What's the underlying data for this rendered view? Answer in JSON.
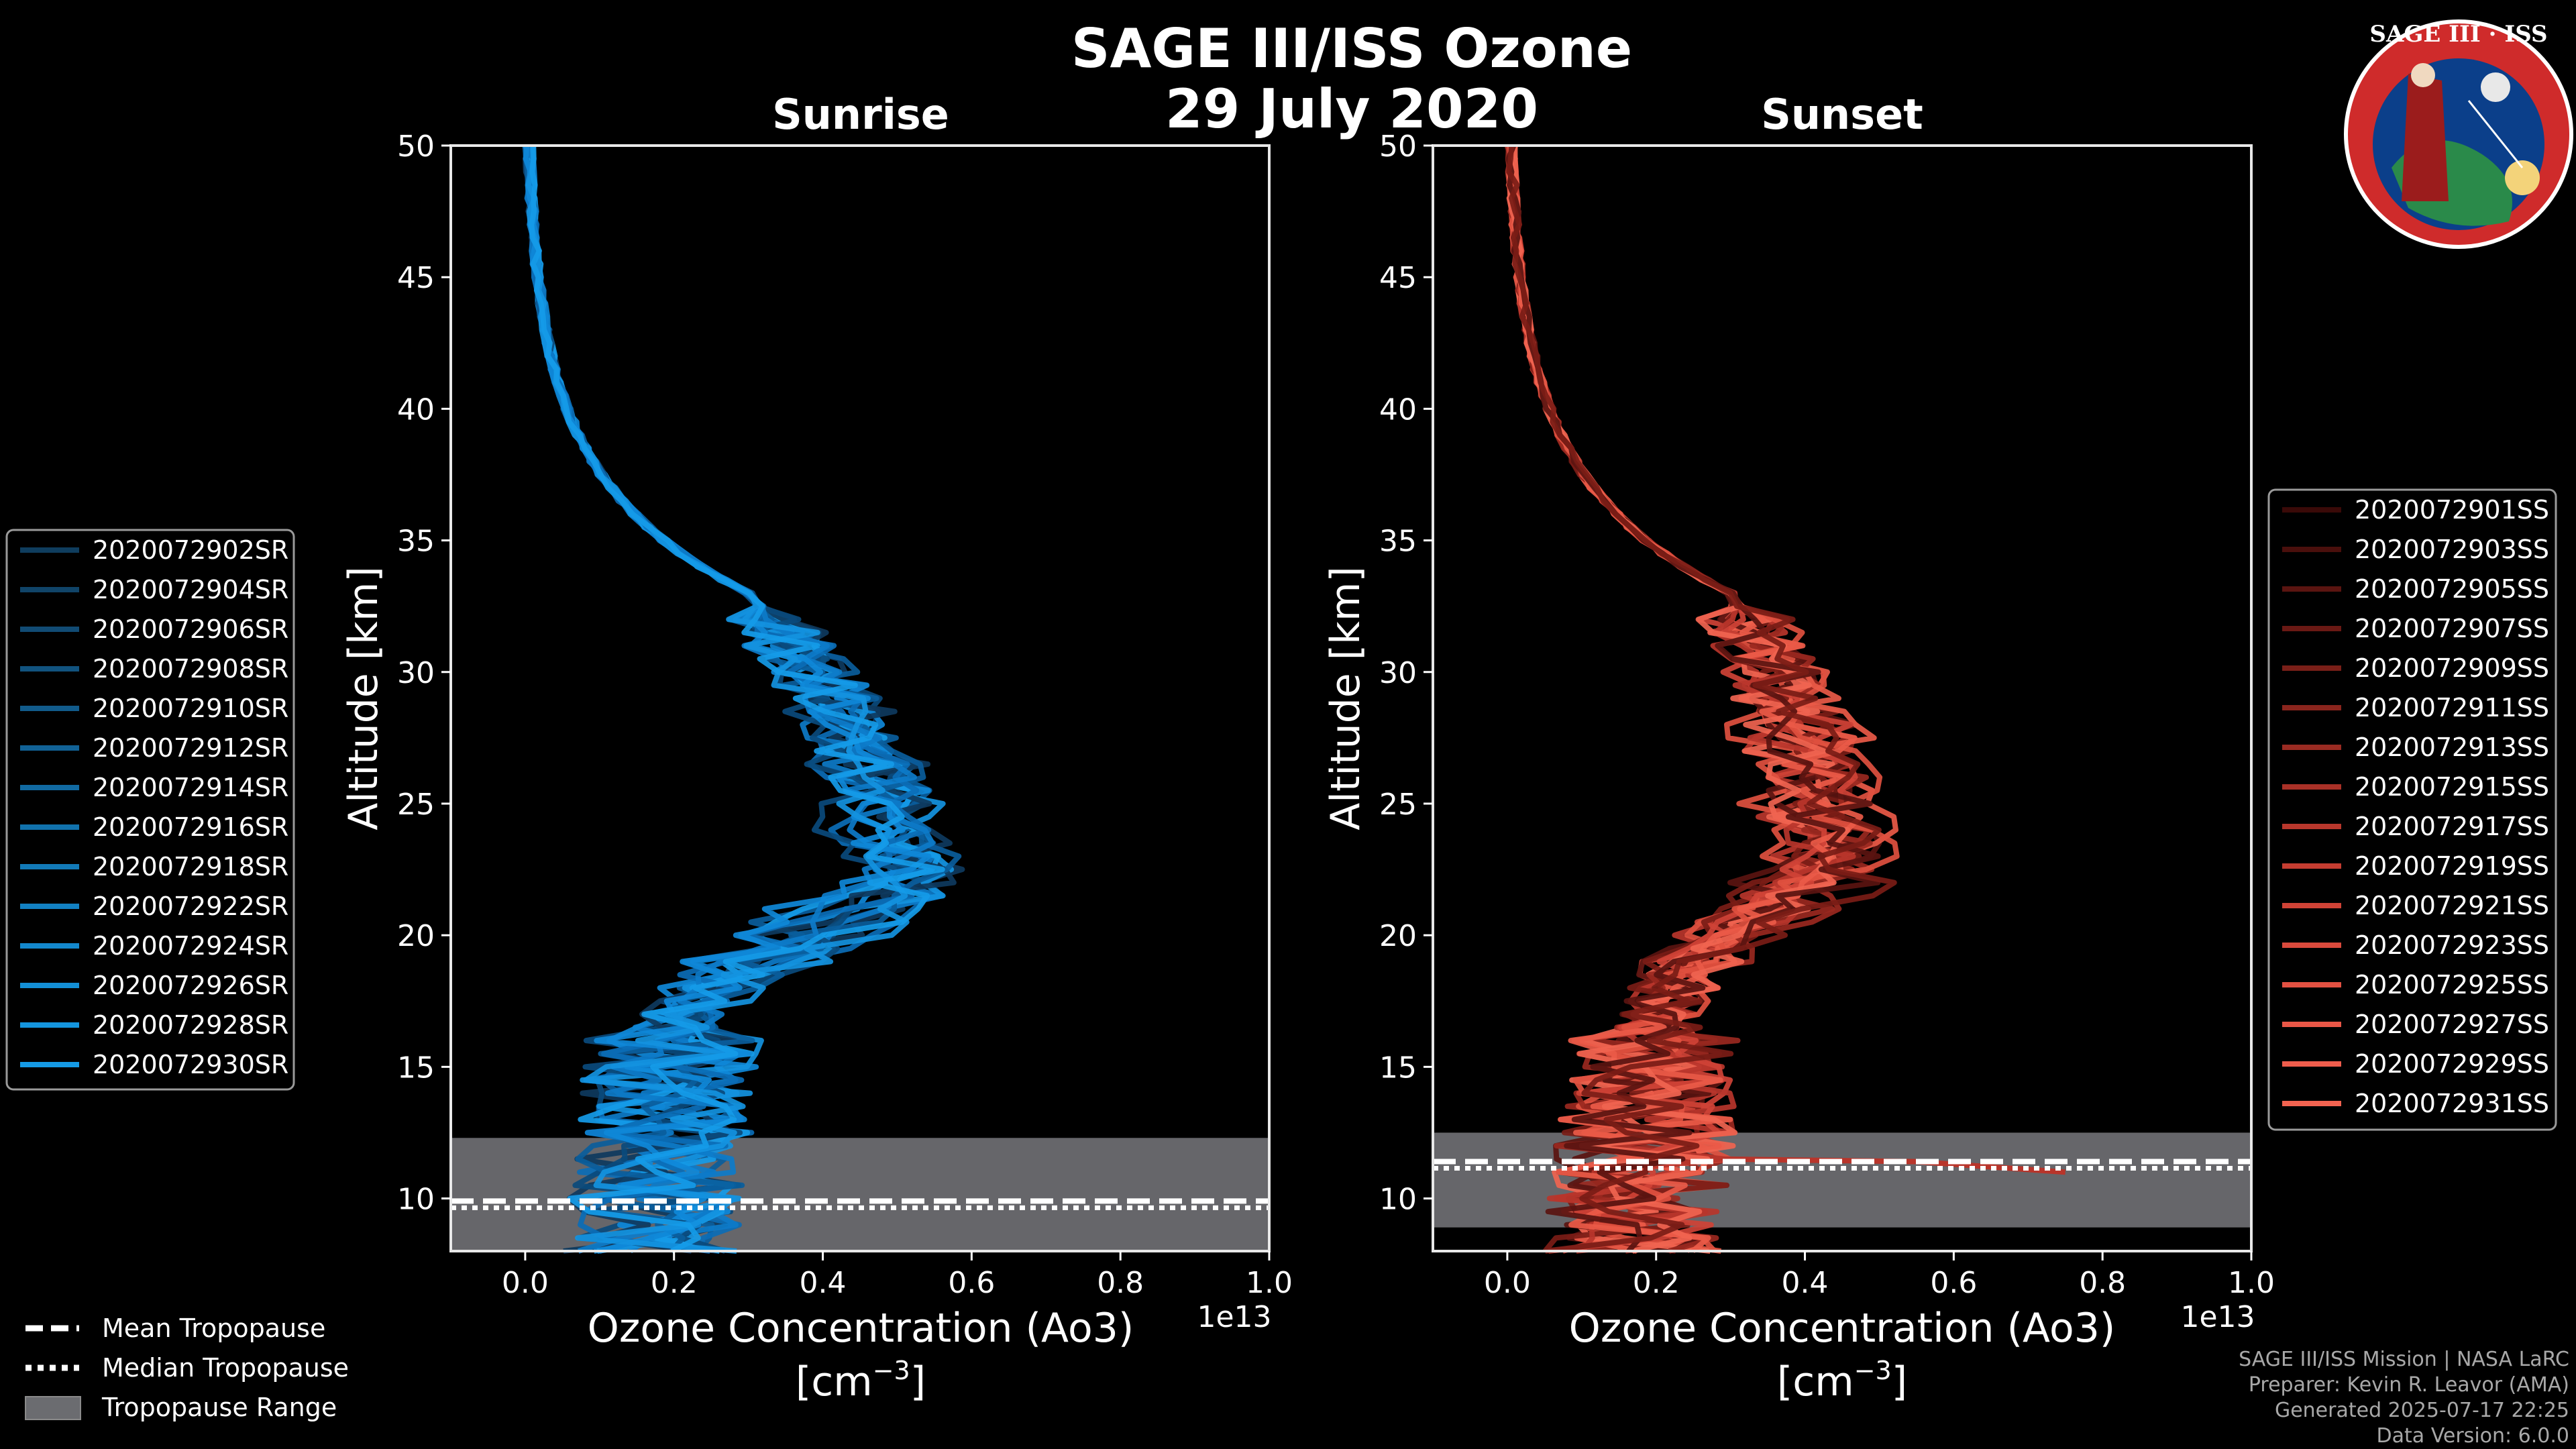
{
  "figure": {
    "title_line1": "SAGE III/ISS Ozone",
    "title_line2": "29 July 2020",
    "footer": [
      "SAGE III/ISS Mission | NASA LaRC",
      "Preparer: Kevin R. Leavor (AMA)",
      "Generated 2025-07-17 22:25",
      "Data Version: 6.0.0"
    ],
    "logo_text": "SAGE III · ISS",
    "bottom_legend": [
      {
        "label": "Mean Tropopause",
        "style": "dashed"
      },
      {
        "label": "Median Tropopause",
        "style": "dotted"
      },
      {
        "label": "Tropopause Range",
        "style": "patch"
      }
    ],
    "x_offset_label": "1e13"
  },
  "chart_data": [
    {
      "type": "line",
      "panel": "sunrise",
      "title": "Sunrise",
      "xlabel": "Ozone Concentration (Ao3)",
      "xlabel_units": "[cm",
      "xlabel_exp": "−3",
      "xlabel_close": "]",
      "ylabel": "Altitude [km]",
      "xlim": [
        -0.1,
        1.0
      ],
      "ylim": [
        8,
        50
      ],
      "xticks": [
        "0.0",
        "0.2",
        "0.4",
        "0.6",
        "0.8",
        "1.0"
      ],
      "xtick_values": [
        0.0,
        0.2,
        0.4,
        0.6,
        0.8,
        1.0
      ],
      "yticks": [
        10,
        15,
        20,
        25,
        30,
        35,
        40,
        45,
        50
      ],
      "x_multiplier": "1e13",
      "tropopause": {
        "range": [
          8,
          12.3
        ],
        "mean": 9.8,
        "median": 9.8
      },
      "profile_peak": {
        "alt": 21.5,
        "value": 0.52
      },
      "series_colors": [
        "#0e3a5e",
        "#0a4a7c",
        "#0a5d9c",
        "#0b6cb6",
        "#0d7bc9",
        "#0f88d8",
        "#1393e0",
        "#159be8"
      ],
      "series": [
        {
          "name": "2020072902SR",
          "legend_color": "#0f3d5e"
        },
        {
          "name": "2020072904SR",
          "legend_color": "#104468"
        },
        {
          "name": "2020072906SR",
          "legend_color": "#114b74"
        },
        {
          "name": "2020072908SR",
          "legend_color": "#11537f"
        },
        {
          "name": "2020072910SR",
          "legend_color": "#115b8b"
        },
        {
          "name": "2020072912SR",
          "legend_color": "#116296"
        },
        {
          "name": "2020072914SR",
          "legend_color": "#116aa2"
        },
        {
          "name": "2020072916SR",
          "legend_color": "#1172ad"
        },
        {
          "name": "2020072918SR",
          "legend_color": "#127ab8"
        },
        {
          "name": "2020072922SR",
          "legend_color": "#1281c3"
        },
        {
          "name": "2020072924SR",
          "legend_color": "#1388cd"
        },
        {
          "name": "2020072926SR",
          "legend_color": "#138fd6"
        },
        {
          "name": "2020072928SR",
          "legend_color": "#1495de"
        },
        {
          "name": "2020072930SR",
          "legend_color": "#159be6"
        }
      ]
    },
    {
      "type": "line",
      "panel": "sunset",
      "title": "Sunset",
      "xlabel": "Ozone Concentration (Ao3)",
      "xlabel_units": "[cm",
      "xlabel_exp": "−3",
      "xlabel_close": "]",
      "ylabel": "Altitude [km]",
      "xlim": [
        -0.1,
        1.0
      ],
      "ylim": [
        8,
        50
      ],
      "xticks": [
        "0.0",
        "0.2",
        "0.4",
        "0.6",
        "0.8",
        "1.0"
      ],
      "xtick_values": [
        0.0,
        0.2,
        0.4,
        0.6,
        0.8,
        1.0
      ],
      "yticks": [
        10,
        15,
        20,
        25,
        30,
        35,
        40,
        45,
        50
      ],
      "x_multiplier": "1e13",
      "tropopause": {
        "range": [
          8.9,
          12.5
        ],
        "mean": 11.3,
        "median": 11.3
      },
      "profile_peak": {
        "alt": 23.0,
        "value": 0.43
      },
      "series_colors": [
        "#5a1410",
        "#7a1c16",
        "#9a2820",
        "#b8352b",
        "#cf4236",
        "#e0503f",
        "#ea5a48",
        "#f06450"
      ],
      "series": [
        {
          "name": "2020072901SS",
          "legend_color": "#3a0a08"
        },
        {
          "name": "2020072903SS",
          "legend_color": "#4a0f0c"
        },
        {
          "name": "2020072905SS",
          "legend_color": "#5a1410"
        },
        {
          "name": "2020072907SS",
          "legend_color": "#6a1914"
        },
        {
          "name": "2020072909SS",
          "legend_color": "#7a1f18"
        },
        {
          "name": "2020072911SS",
          "legend_color": "#8a251d"
        },
        {
          "name": "2020072913SS",
          "legend_color": "#9a2b22"
        },
        {
          "name": "2020072915SS",
          "legend_color": "#a93127"
        },
        {
          "name": "2020072917SS",
          "legend_color": "#b8372c"
        },
        {
          "name": "2020072919SS",
          "legend_color": "#c53d31"
        },
        {
          "name": "2020072921SS",
          "legend_color": "#d04336"
        },
        {
          "name": "2020072923SS",
          "legend_color": "#da4a3c"
        },
        {
          "name": "2020072925SS",
          "legend_color": "#e35142"
        },
        {
          "name": "2020072927SS",
          "legend_color": "#ea5747"
        },
        {
          "name": "2020072929SS",
          "legend_color": "#ef5d4c"
        },
        {
          "name": "2020072931SS",
          "legend_color": "#f26350"
        }
      ]
    }
  ]
}
